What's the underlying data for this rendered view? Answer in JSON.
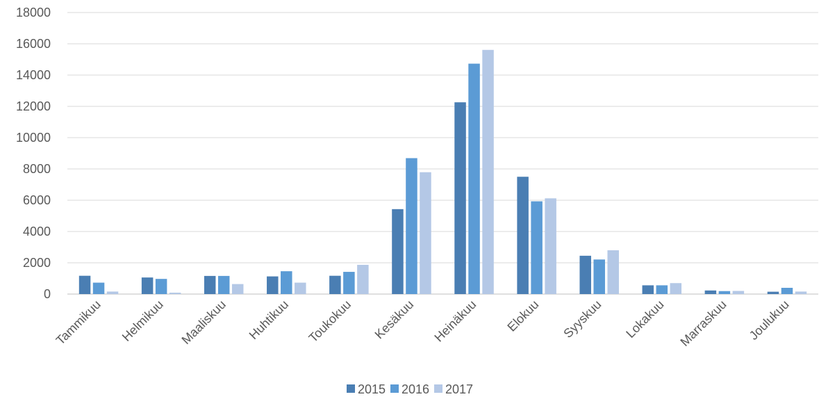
{
  "chart_data": {
    "type": "bar",
    "title": "",
    "xlabel": "",
    "ylabel": "",
    "categories": [
      "Tammikuu",
      "Helmikuu",
      "Maaliskuu",
      "Huhtikuu",
      "Toukokuu",
      "Kesäkuu",
      "Heinäkuu",
      "Elokuu",
      "Syyskuu",
      "Lokakuu",
      "Marraskuu",
      "Joulukuu"
    ],
    "series": [
      {
        "name": "2015",
        "color": "#4a7eb3",
        "values": [
          1170,
          1060,
          1160,
          1130,
          1170,
          5430,
          12260,
          7500,
          2450,
          560,
          230,
          150
        ]
      },
      {
        "name": "2016",
        "color": "#5b9bd5",
        "values": [
          730,
          970,
          1160,
          1460,
          1420,
          8690,
          14730,
          5930,
          2210,
          560,
          190,
          400
        ]
      },
      {
        "name": "2017",
        "color": "#b4c8e6",
        "values": [
          160,
          90,
          640,
          730,
          1870,
          7790,
          15610,
          6120,
          2800,
          700,
          200,
          160
        ]
      }
    ],
    "ylim": [
      0,
      18000
    ],
    "yticks": [
      0,
      2000,
      4000,
      6000,
      8000,
      10000,
      12000,
      14000,
      16000,
      18000
    ],
    "grid": true,
    "legend_position": "bottom"
  }
}
